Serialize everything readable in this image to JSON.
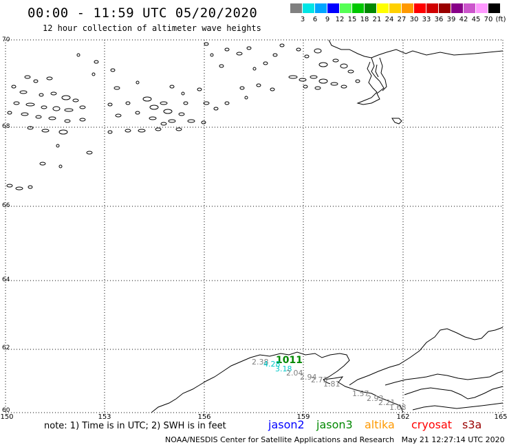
{
  "header": {
    "title": "00:00 - 11:59 UTC 05/20/2020",
    "subtitle": "12 hour collection of altimeter wave heights"
  },
  "legend": {
    "colors": [
      "#808080",
      "#00e5e5",
      "#00a5ff",
      "#0000ff",
      "#55ff55",
      "#00c800",
      "#008800",
      "#ffff00",
      "#ffd000",
      "#ff9900",
      "#ff0000",
      "#d00000",
      "#990000",
      "#880088",
      "#cc55cc",
      "#ff99ff",
      "#000000"
    ],
    "labels": [
      "3",
      "6",
      "9",
      "12",
      "15",
      "18",
      "21",
      "24",
      "27",
      "30",
      "33",
      "36",
      "39",
      "42",
      "45",
      "70",
      "(ft)"
    ]
  },
  "axes": {
    "lat_labels": [
      "70",
      "68",
      "66",
      "64",
      "62",
      "60"
    ],
    "lon_labels": [
      "150",
      "153",
      "156",
      "159",
      "162",
      "165"
    ]
  },
  "observations": [
    {
      "text": "2.38",
      "color": "#808080"
    },
    {
      "text": "1011",
      "color": "#008800"
    },
    {
      "text": "4.28",
      "color": "#00c8c8"
    },
    {
      "text": "3.18",
      "color": "#00c8c8"
    },
    {
      "text": "2.04",
      "color": "#808080"
    },
    {
      "text": "2.94",
      "color": "#808080"
    },
    {
      "text": "2.73",
      "color": "#808080"
    },
    {
      "text": "1.81",
      "color": "#808080"
    },
    {
      "text": "1.57",
      "color": "#808080"
    },
    {
      "text": "2.93",
      "color": "#808080"
    },
    {
      "text": "2.21",
      "color": "#808080"
    },
    {
      "text": "1.68",
      "color": "#808080"
    }
  ],
  "note": "note: 1) Time is in UTC; 2) SWH is in feet",
  "satellites": [
    {
      "name": "jason2",
      "color": "#0000ff"
    },
    {
      "name": "jason3",
      "color": "#008800"
    },
    {
      "name": "altika",
      "color": "#ff9900"
    },
    {
      "name": "cryosat",
      "color": "#ff0000"
    },
    {
      "name": "s3a",
      "color": "#990000"
    }
  ],
  "footer": {
    "source": "NOAA/NESDIS Center for Satellite Applications and Research",
    "timestamp": "May 21 12:27:14 UTC 2020"
  }
}
